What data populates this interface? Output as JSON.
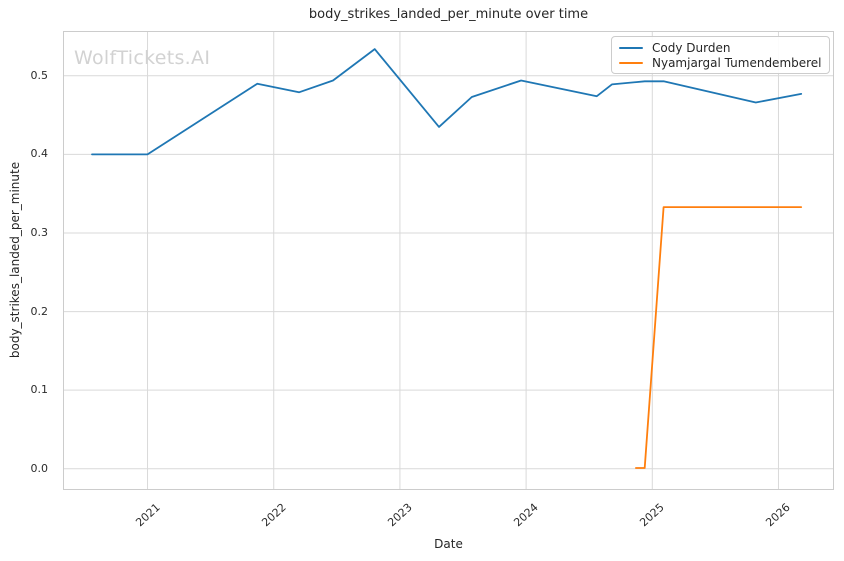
{
  "watermark": "WolfTickets.AI",
  "chart": {
    "title": "body_strikes_landed_per_minute over time",
    "xlabel": "Date",
    "ylabel": "body_strikes_landed_per_minute"
  },
  "legend": {
    "items": [
      {
        "label": "Cody Durden",
        "color": "#1f77b4"
      },
      {
        "label": "Nyamjargal Tumendemberel",
        "color": "#ff7f0e"
      }
    ]
  },
  "chart_data": {
    "type": "line",
    "title": "body_strikes_landed_per_minute over time",
    "xlabel": "Date",
    "ylabel": "body_strikes_landed_per_minute",
    "grid": true,
    "legend_position": "upper right",
    "xlim": [
      2020.33,
      2026.44
    ],
    "ylim": [
      -0.027,
      0.557
    ],
    "x_ticks": [
      2021,
      2022,
      2023,
      2024,
      2025,
      2026
    ],
    "x_tick_labels": [
      "2021",
      "2022",
      "2023",
      "2024",
      "2025",
      "2026"
    ],
    "y_ticks": [
      0.0,
      0.1,
      0.2,
      0.3,
      0.4,
      0.5
    ],
    "y_tick_labels": [
      "0.0",
      "0.1",
      "0.2",
      "0.3",
      "0.4",
      "0.5"
    ],
    "series": [
      {
        "name": "Cody Durden",
        "color": "#1f77b4",
        "points": [
          [
            2020.56,
            0.4
          ],
          [
            2021.0,
            0.4
          ],
          [
            2021.87,
            0.49
          ],
          [
            2022.2,
            0.479
          ],
          [
            2022.47,
            0.494
          ],
          [
            2022.8,
            0.534
          ],
          [
            2023.31,
            0.435
          ],
          [
            2023.57,
            0.473
          ],
          [
            2023.96,
            0.494
          ],
          [
            2024.56,
            0.474
          ],
          [
            2024.68,
            0.489
          ],
          [
            2024.94,
            0.493
          ],
          [
            2025.09,
            0.493
          ],
          [
            2025.82,
            0.466
          ],
          [
            2026.18,
            0.477
          ]
        ]
      },
      {
        "name": "Nyamjargal Tumendemberel",
        "color": "#ff7f0e",
        "points": [
          [
            2024.87,
            0.001
          ],
          [
            2024.94,
            0.001
          ],
          [
            2025.09,
            0.333
          ],
          [
            2026.18,
            0.333
          ]
        ]
      }
    ],
    "colors": {
      "grid": "#d9d9d9",
      "spine": "#cccccc",
      "text": "#262626",
      "watermark": "#d2d2d2",
      "background": "#ffffff"
    }
  }
}
